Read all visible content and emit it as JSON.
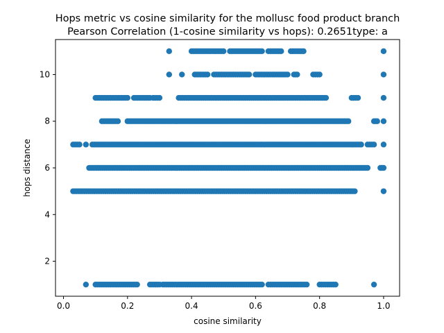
{
  "chart_data": {
    "type": "scatter",
    "title": "Hops metric vs cosine similarity for the mollusc food product branch",
    "subtitle": "Pearson Correlation (1-cosine similarity vs hops): 0.2651type: a",
    "xlabel": "cosine similarity",
    "ylabel": "hops distance",
    "xlim": [
      -0.025,
      1.05
    ],
    "ylim": [
      0.5,
      11.5
    ],
    "xticks": [
      0.0,
      0.2,
      0.4,
      0.6,
      0.8,
      1.0
    ],
    "xtick_labels": [
      "0.0",
      "0.2",
      "0.4",
      "0.6",
      "0.8",
      "1.0"
    ],
    "yticks": [
      2,
      4,
      6,
      8,
      10
    ],
    "ytick_labels": [
      "2",
      "4",
      "6",
      "8",
      "10"
    ],
    "grid": false,
    "marker_color": "#1f77b4",
    "series": [
      {
        "bands": [
          {
            "y": 11,
            "ranges": [
              [
                0.33,
                0.33
              ],
              [
                0.4,
                0.5
              ],
              [
                0.52,
                0.62
              ],
              [
                0.64,
                0.68
              ],
              [
                0.71,
                0.75
              ],
              [
                1.0,
                1.0
              ]
            ]
          },
          {
            "y": 10,
            "ranges": [
              [
                0.33,
                0.33
              ],
              [
                0.37,
                0.37
              ],
              [
                0.41,
                0.45
              ],
              [
                0.47,
                0.58
              ],
              [
                0.6,
                0.7
              ],
              [
                0.72,
                0.73
              ],
              [
                0.78,
                0.8
              ],
              [
                1.0,
                1.0
              ]
            ]
          },
          {
            "y": 9,
            "ranges": [
              [
                0.1,
                0.2
              ],
              [
                0.22,
                0.27
              ],
              [
                0.28,
                0.3
              ],
              [
                0.36,
                0.82
              ],
              [
                0.9,
                0.92
              ],
              [
                1.0,
                1.0
              ]
            ]
          },
          {
            "y": 8,
            "ranges": [
              [
                0.12,
                0.17
              ],
              [
                0.2,
                0.89
              ],
              [
                0.97,
                0.98
              ],
              [
                1.0,
                1.0
              ]
            ]
          },
          {
            "y": 7,
            "ranges": [
              [
                0.03,
                0.05
              ],
              [
                0.07,
                0.07
              ],
              [
                0.09,
                0.93
              ],
              [
                0.95,
                0.97
              ],
              [
                1.0,
                1.0
              ]
            ]
          },
          {
            "y": 6,
            "ranges": [
              [
                0.08,
                0.95
              ],
              [
                0.99,
                1.0
              ]
            ]
          },
          {
            "y": 5,
            "ranges": [
              [
                0.03,
                0.91
              ],
              [
                1.0,
                1.0
              ]
            ]
          },
          {
            "y": 1,
            "ranges": [
              [
                0.07,
                0.07
              ],
              [
                0.1,
                0.23
              ],
              [
                0.27,
                0.3
              ],
              [
                0.31,
                0.62
              ],
              [
                0.64,
                0.76
              ],
              [
                0.8,
                0.85
              ],
              [
                0.97,
                0.97
              ]
            ]
          }
        ]
      }
    ]
  }
}
